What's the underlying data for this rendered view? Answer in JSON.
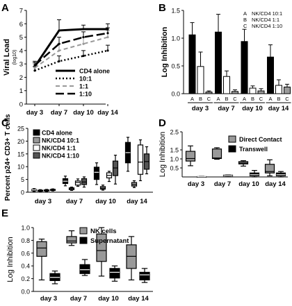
{
  "figure_colors": {
    "black": "#000000",
    "dark_gray": "#555555",
    "mid_gray": "#999999",
    "light_gray": "#c8c8c8",
    "white": "#ffffff"
  },
  "chart_data": [
    {
      "panel": "A",
      "type": "line",
      "ylabel": "Viral Load",
      "ylabel_sub": "(log10)",
      "x": [
        "day 3",
        "day 7",
        "day 10",
        "day 14"
      ],
      "ylim": [
        0,
        7
      ],
      "yticks": [
        0,
        1,
        2,
        3,
        4,
        5,
        6,
        7
      ],
      "series": [
        {
          "name": "CD4 alone",
          "dash": "solid",
          "width": 3,
          "color": "#000000",
          "values": [
            2.8,
            5.5,
            5.6,
            5.6
          ],
          "err": [
            0.3,
            0.8,
            0.3,
            0.4
          ]
        },
        {
          "name": "10:1",
          "dash": "dot",
          "width": 2.5,
          "color": "#000000",
          "values": [
            2.5,
            3.2,
            3.6,
            4.0
          ],
          "err": [
            0.3,
            0.4,
            0.4,
            0.4
          ]
        },
        {
          "name": "1:1",
          "dash": "dash",
          "width": 2,
          "color": "#999999",
          "values": [
            2.7,
            4.0,
            4.5,
            5.0
          ],
          "err": [
            0.3,
            0.5,
            0.5,
            0.5
          ]
        },
        {
          "name": "1:10",
          "dash": "longdash",
          "width": 2.5,
          "color": "#000000",
          "values": [
            2.9,
            4.5,
            5.0,
            5.3
          ],
          "err": [
            0.3,
            0.5,
            0.4,
            0.4
          ]
        }
      ]
    },
    {
      "panel": "B",
      "type": "bar",
      "ylabel": "Log Inhibition",
      "ylim": [
        0,
        1.5
      ],
      "yticks": [
        "0.0",
        "0.5",
        "1.0",
        "1.5"
      ],
      "groups": [
        "day 3",
        "day 7",
        "day 10",
        "day 14"
      ],
      "bar_letters": [
        "A",
        "B",
        "C"
      ],
      "legend": [
        {
          "letter": "A",
          "label": "NK/CD4 10:1"
        },
        {
          "letter": "B",
          "label": "NK/CD4 1:1"
        },
        {
          "letter": "C",
          "label": "NK/CD4 1:10"
        }
      ],
      "series": [
        {
          "name": "NK/CD4 10:1",
          "fill": "#000000",
          "values": [
            1.06,
            1.11,
            0.94,
            0.66
          ],
          "err": [
            0.22,
            0.32,
            0.22,
            0.22
          ]
        },
        {
          "name": "NK/CD4 1:1",
          "fill": "#ffffff",
          "values": [
            0.49,
            0.31,
            0.1,
            0.15
          ],
          "err": [
            0.26,
            0.1,
            0.04,
            0.1
          ]
        },
        {
          "name": "NK/CD4 1:10",
          "fill": "#999999",
          "values": [
            0.03,
            0.04,
            0.05,
            0.12
          ],
          "err": [
            0.02,
            0.03,
            0.04,
            0.05
          ]
        }
      ]
    },
    {
      "panel": "C",
      "type": "box",
      "ylabel": "Percent p24+ CD3+ T cells",
      "ylim": [
        0,
        25
      ],
      "yticks": [
        0,
        5,
        10,
        15,
        20,
        25
      ],
      "groups": [
        "day 3",
        "day 7",
        "day 10",
        "day 14"
      ],
      "legend_position": "top-left",
      "series": [
        {
          "name": "CD4 alone",
          "fill": "#000000",
          "boxes": [
            [
              0.3,
              0.6,
              0.9,
              1.1,
              1.4
            ],
            [
              2.5,
              3.4,
              4.3,
              5.3,
              6.3
            ],
            [
              3.0,
              5.0,
              7.8,
              9.8,
              11.5
            ],
            [
              8.2,
              11.5,
              15.5,
              19.5,
              21.5
            ]
          ]
        },
        {
          "name": "NK/CD4 10:1",
          "fill": "#999999",
          "boxes": [
            [
              0.2,
              0.4,
              0.6,
              0.8,
              1.0
            ],
            [
              0.7,
              1.0,
              1.4,
              1.7,
              2.0
            ],
            [
              0.8,
              1.2,
              1.6,
              2.2,
              2.8
            ],
            [
              1.8,
              2.4,
              3.0,
              3.8,
              4.5
            ]
          ]
        },
        {
          "name": "NK/CD4 1:1",
          "fill": "#ffffff",
          "boxes": [
            [
              0.3,
              0.5,
              0.7,
              0.9,
              1.1
            ],
            [
              2.3,
              2.8,
              3.8,
              4.4,
              5.2
            ],
            [
              4.2,
              5.6,
              6.6,
              7.6,
              8.2
            ],
            [
              4.5,
              7.0,
              11.8,
              18.5,
              20.5
            ]
          ]
        },
        {
          "name": "NK/CD4 1:10",
          "fill": "#555555",
          "boxes": [
            [
              0.5,
              0.7,
              0.9,
              1.1,
              1.3
            ],
            [
              2.0,
              3.0,
              4.0,
              5.3,
              6.0
            ],
            [
              3.2,
              6.5,
              9.5,
              12.2,
              14.5
            ],
            [
              7.2,
              9.0,
              12.0,
              15.0,
              17.8
            ]
          ]
        }
      ]
    },
    {
      "panel": "D",
      "type": "box",
      "ylabel": "Log Inhibition",
      "ylim": [
        0,
        2.5
      ],
      "yticks": [
        "0.5",
        "1.0",
        "1.5",
        "2.5"
      ],
      "groups": [
        "day 3",
        "day 7",
        "day 10",
        "day 14"
      ],
      "legend_position": "top-right",
      "series": [
        {
          "name": "Direct Contact",
          "fill": "#999999",
          "boxes": [
            [
              0.62,
              0.88,
              1.02,
              1.42,
              1.72
            ],
            [
              0.98,
              1.02,
              1.05,
              1.55,
              1.62
            ],
            [
              0.6,
              0.72,
              0.77,
              0.85,
              0.9
            ],
            [
              0.06,
              0.22,
              0.3,
              0.7,
              0.95
            ]
          ]
        },
        {
          "name": "Transwell",
          "fill": "#000000",
          "boxes": [
            [
              0.0,
              0.0,
              0.01,
              0.02,
              0.03
            ],
            [
              0.01,
              0.05,
              0.07,
              0.1,
              0.11
            ],
            [
              0.0,
              0.06,
              0.12,
              0.22,
              0.36
            ],
            [
              0.0,
              0.06,
              0.12,
              0.22,
              0.3
            ]
          ]
        }
      ]
    },
    {
      "panel": "E",
      "type": "box",
      "ylabel": "Log Inhibition",
      "ylim": [
        0,
        1.0
      ],
      "yticks": [
        "0.0",
        "0.2",
        "0.4",
        "0.6",
        "0.8",
        "1.0"
      ],
      "groups": [
        "day 3",
        "day 7",
        "day 10",
        "day 14"
      ],
      "legend_position": "top-center",
      "series": [
        {
          "name": "NK cells",
          "fill": "#999999",
          "boxes": [
            [
              0.18,
              0.55,
              0.68,
              0.78,
              0.82
            ],
            [
              0.72,
              0.76,
              0.79,
              0.86,
              0.95
            ],
            [
              0.24,
              0.47,
              0.64,
              0.9,
              1.0
            ],
            [
              0.18,
              0.36,
              0.55,
              0.73,
              0.86
            ]
          ]
        },
        {
          "name": "Supernatant",
          "fill": "#000000",
          "boxes": [
            [
              0.12,
              0.17,
              0.22,
              0.28,
              0.32
            ],
            [
              0.25,
              0.28,
              0.34,
              0.42,
              0.5
            ],
            [
              0.16,
              0.21,
              0.3,
              0.36,
              0.4
            ],
            [
              0.14,
              0.18,
              0.26,
              0.3,
              0.36
            ]
          ]
        }
      ]
    }
  ]
}
